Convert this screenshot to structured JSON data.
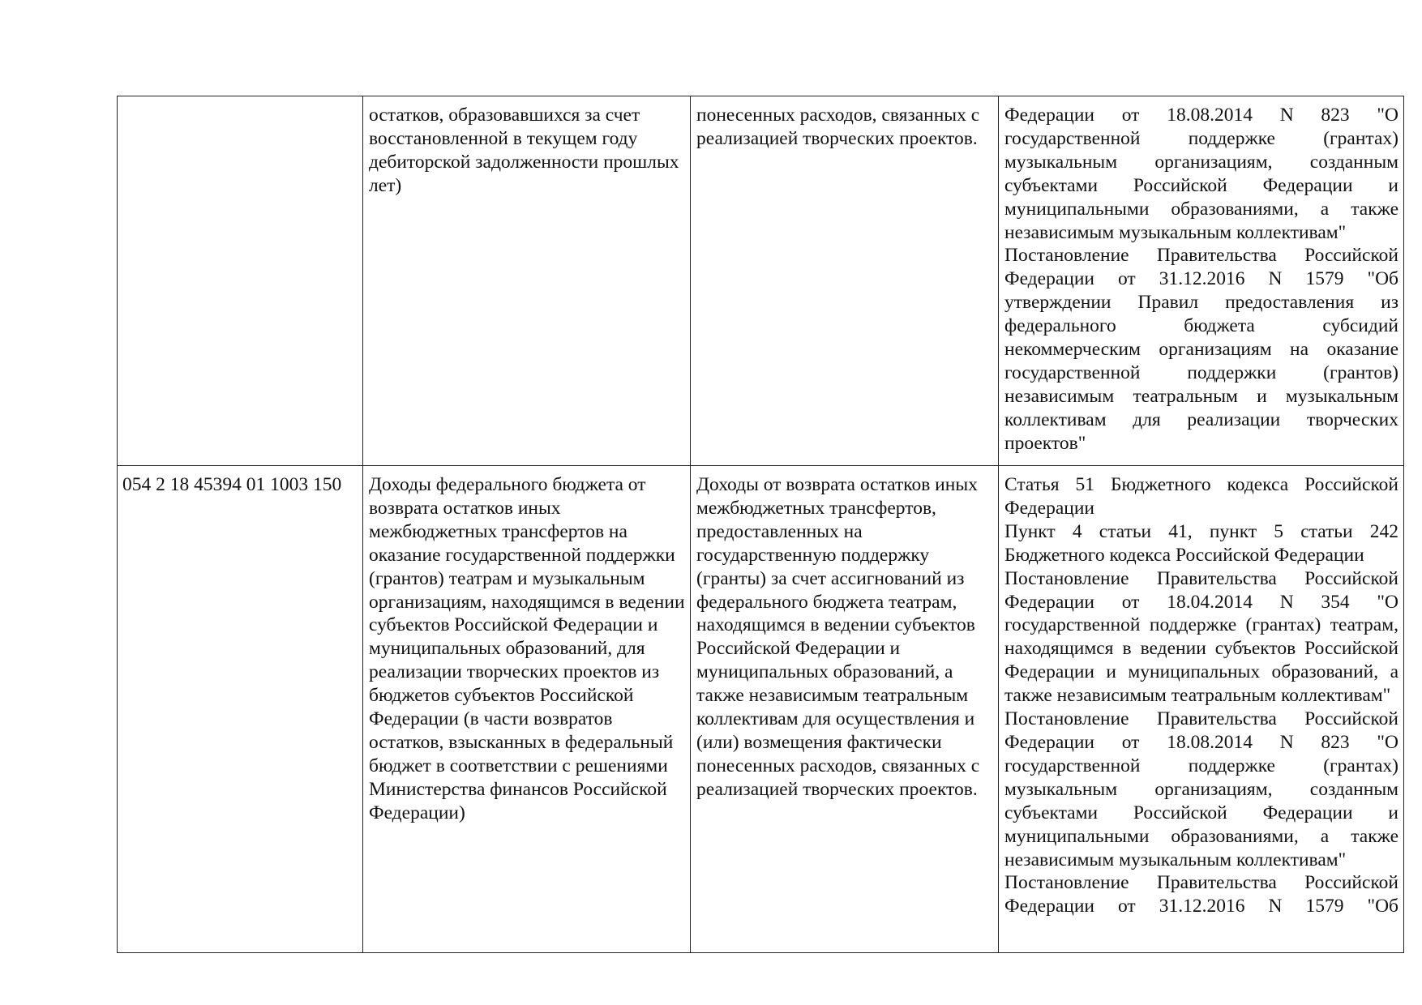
{
  "table": {
    "rows": [
      [
        [],
        [
          "остатков, образовавшихся за счет восстановленной в текущем году дебиторской задолженности прошлых лет)"
        ],
        [
          "понесенных расходов, связанных с реализацией творческих проектов."
        ],
        [
          "Федерации от 18.08.2014 N 823 \"О государственной поддержке (грантах) музыкальным организациям, созданным субъектами Российской Федерации и муниципальными образованиями, а также независимым музыкальным коллективам\"",
          "Постановление Правительства Российской Федерации от 31.12.2016 N 1579 \"Об утверждении Правил предоставления из федерального бюджета субсидий некоммерческим организациям на оказание государственной поддержки (грантов) независимым театральным и музыкальным коллективам для реализации творческих проектов\""
        ]
      ],
      [
        [
          "054 2 18 45394 01 1003 150"
        ],
        [
          "Доходы федерального бюджета от возврата остатков иных межбюджетных трансфертов на оказание государственной поддержки (грантов) театрам и музыкальным организациям, находящимся в ведении субъектов Российской Федерации и муниципальных образований, для реализации творческих проектов из бюджетов субъектов Российской Федерации (в части возвратов остатков, взысканных в федеральный бюджет в соответствии с решениями Министерства финансов Российской Федерации)"
        ],
        [
          "Доходы от возврата остатков иных межбюджетных трансфертов, предоставленных на государственную поддержку (гранты) за счет ассигнований из федерального бюджета театрам, находящимся в ведении субъектов Российской Федерации и муниципальных образований, а также независимым театральным коллективам для осуществления и (или) возмещения фактически понесенных расходов, связанных с реализацией творческих проектов."
        ],
        [
          "Статья 51 Бюджетного кодекса Российской Федерации",
          "Пункт 4 статьи 41, пункт 5 статьи 242 Бюджетного кодекса Российской Федерации",
          "Постановление Правительства Российской Федерации от 18.04.2014 N 354 \"О государственной поддержке (грантах) театрам, находящимся в ведении субъектов Российской Федерации и муниципальных образований, а также независимым театральным коллективам\"",
          "Постановление Правительства Российской Федерации от 18.08.2014 N 823 \"О государственной поддержке (грантах) музыкальным организациям, созданным субъектами Российской Федерации и муниципальными образованиями, а также независимым музыкальным коллективам\"",
          "Постановление Правительства Российской Федерации от 31.12.2016 N 1579 \"Об"
        ]
      ]
    ]
  }
}
